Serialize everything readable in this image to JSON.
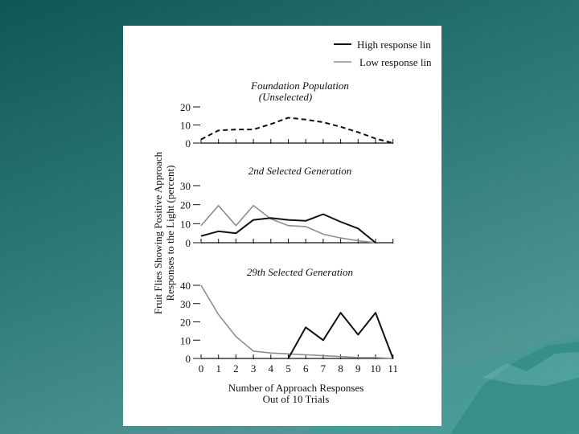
{
  "legend": {
    "high": "High response lin",
    "low": "Low response lin"
  },
  "colors": {
    "high": "#111111",
    "low": "#8f8f8f"
  },
  "shared": {
    "ylabel_line1": "Fruit Flies Showing Positive Approach",
    "ylabel_line2": "Responses to the Light (percent)",
    "xlabel_line1": "Number of Approach Responses",
    "xlabel_line2": "Out of 10 Trials",
    "x_ticks": [
      "0",
      "1",
      "2",
      "3",
      "4",
      "5",
      "6",
      "7",
      "8",
      "9",
      "10",
      "11"
    ]
  },
  "chart_data": [
    {
      "type": "line",
      "title": "Foundation Population",
      "subtitle": "(Unselected)",
      "x": [
        0,
        1,
        2,
        3,
        4,
        5,
        6,
        7,
        8,
        9,
        10,
        11
      ],
      "ylim": [
        0,
        20
      ],
      "y_ticks": [
        0,
        10,
        20
      ],
      "series": [
        {
          "key": "high",
          "style": "dashed",
          "values": [
            2,
            7,
            7.5,
            7.5,
            10.5,
            14,
            13,
            11.5,
            9,
            6,
            2.5,
            0
          ]
        }
      ]
    },
    {
      "type": "line",
      "title": "2nd Selected Generation",
      "x": [
        0,
        1,
        2,
        3,
        4,
        5,
        6,
        7,
        8,
        9,
        10,
        11
      ],
      "ylim": [
        0,
        30
      ],
      "y_ticks": [
        0,
        10,
        20,
        30
      ],
      "series": [
        {
          "key": "low",
          "style": "solid",
          "values": [
            9,
            19.5,
            9,
            19.5,
            12.5,
            9,
            8.5,
            4.5,
            2.5,
            1,
            0,
            null
          ]
        },
        {
          "key": "high",
          "style": "solid",
          "values": [
            3.5,
            6,
            5,
            12,
            13,
            12,
            11.5,
            15,
            11,
            7.5,
            0,
            null
          ]
        }
      ]
    },
    {
      "type": "line",
      "title": "29th Selected Generation",
      "x": [
        0,
        1,
        2,
        3,
        4,
        5,
        6,
        7,
        8,
        9,
        10,
        11
      ],
      "ylim": [
        0,
        40
      ],
      "y_ticks": [
        0,
        10,
        20,
        30,
        40
      ],
      "series": [
        {
          "key": "low",
          "style": "solid",
          "values": [
            40,
            24,
            12,
            4,
            3,
            2.5,
            2,
            1.5,
            1,
            0.5,
            0.5,
            0
          ]
        },
        {
          "key": "high",
          "style": "solid",
          "values": [
            null,
            null,
            null,
            null,
            null,
            0,
            17,
            10,
            25,
            13,
            25,
            0
          ]
        }
      ]
    }
  ]
}
